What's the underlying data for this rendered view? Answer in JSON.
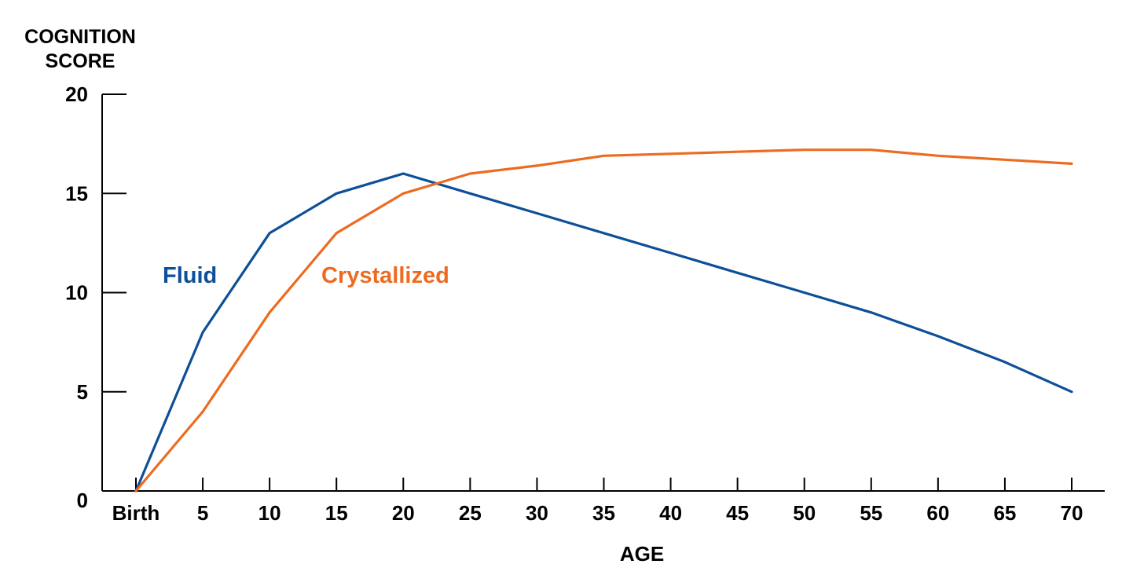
{
  "chart_data": {
    "type": "line",
    "ylabel_lines": [
      "COGNITION",
      "SCORE"
    ],
    "xlabel": "AGE",
    "ylim": [
      0,
      20
    ],
    "yticks": [
      0,
      5,
      10,
      15,
      20
    ],
    "x": [
      0,
      5,
      10,
      15,
      20,
      25,
      30,
      35,
      40,
      45,
      50,
      55,
      60,
      65,
      70
    ],
    "xtick_labels": [
      "Birth",
      "5",
      "10",
      "15",
      "20",
      "25",
      "30",
      "35",
      "40",
      "45",
      "50",
      "55",
      "60",
      "65",
      "70"
    ],
    "grid": false,
    "legend": "inline labels",
    "series": [
      {
        "name": "Fluid",
        "color": "#0d4f98",
        "values": [
          0,
          8,
          13,
          15,
          16,
          15,
          14,
          13,
          12,
          11,
          10,
          9,
          7.8,
          6.5,
          5
        ]
      },
      {
        "name": "Crystallized",
        "color": "#ed6b21",
        "values": [
          0,
          4,
          9,
          13,
          15,
          16,
          16.4,
          16.9,
          17,
          17.1,
          17.2,
          17.2,
          16.9,
          16.7,
          16.5
        ]
      }
    ]
  }
}
